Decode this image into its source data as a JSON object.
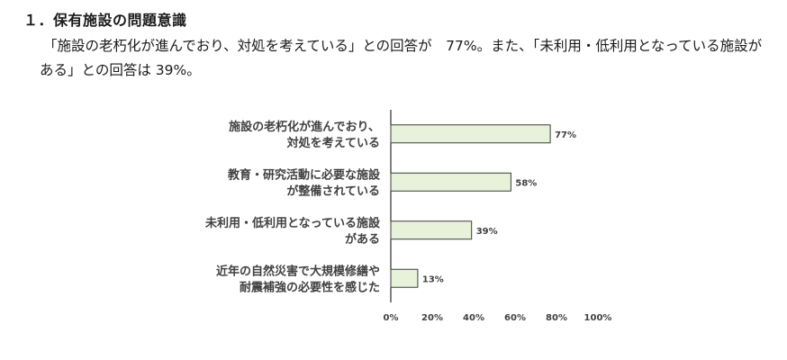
{
  "section": {
    "heading": "１．保有施設の問題意識",
    "paragraph_line1": "「施設の老朽化が進んでおり、対処を考えている」との回答が　77%。また、「未利用・低利用となっている施設が",
    "paragraph_line2": "ある」との回答は 39%。"
  },
  "chart_data": {
    "type": "bar",
    "orientation": "horizontal",
    "categories": [
      [
        "施設の老朽化が進んでおり、",
        "対処を考えている"
      ],
      [
        "教育・研究活動に必要な施設",
        "が整備されている"
      ],
      [
        "未利用・低利用となっている施設",
        "がある"
      ],
      [
        "近年の自然災害で大規模修繕や",
        "耐震補強の必要性を感じた"
      ]
    ],
    "values": [
      77,
      58,
      39,
      13
    ],
    "value_labels": [
      "77%",
      "58%",
      "39%",
      "13%"
    ],
    "xlim": [
      0,
      100
    ],
    "x_ticks": [
      "0%",
      "20%",
      "40%",
      "60%",
      "80%",
      "100%"
    ],
    "grid": false,
    "legend": "none",
    "colors": {
      "bar_fill": "#e6f2d9",
      "bar_stroke": "#3d3d3d",
      "axis": "#000000",
      "text": "#404040"
    }
  }
}
